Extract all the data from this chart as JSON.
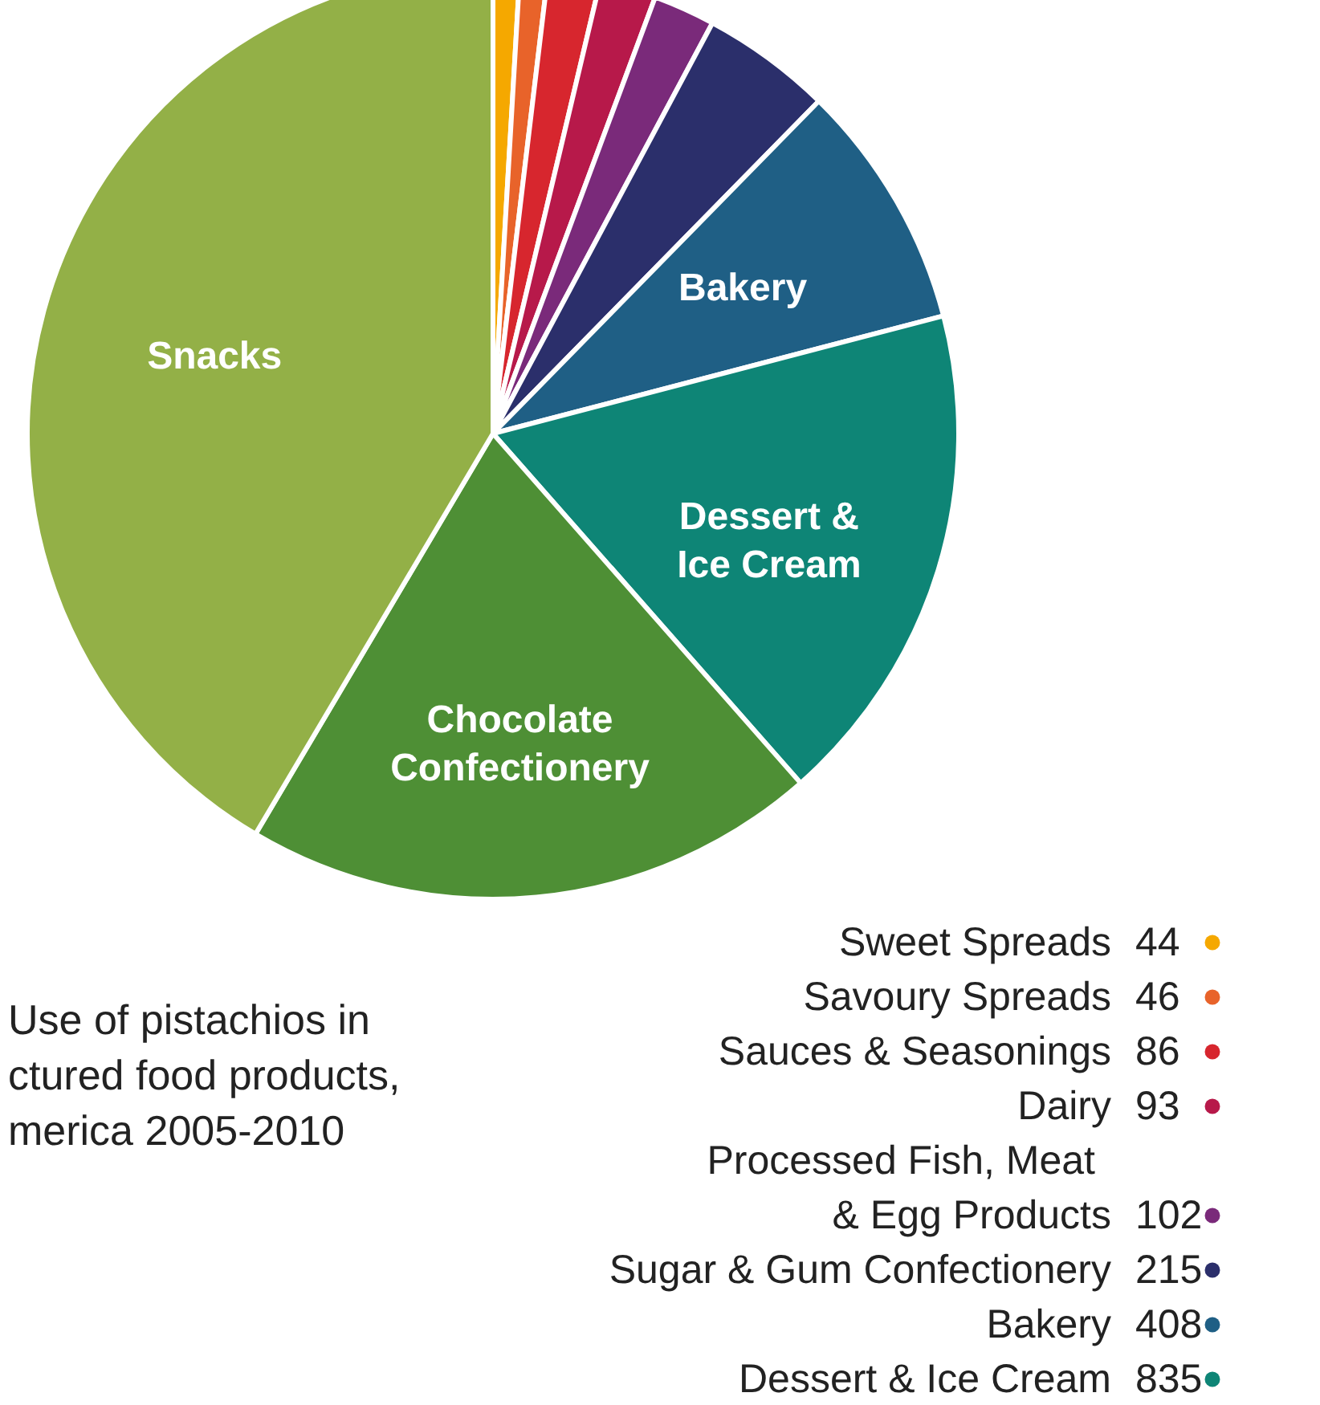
{
  "chart_data": {
    "type": "pie",
    "title": "Use of pistachios in ctured food products, merica 2005-2010",
    "categories": [
      "Sweet Spreads",
      "Savoury Spreads",
      "Sauces & Seasonings",
      "Dairy",
      "Processed Fish, Meat & Egg Products",
      "Sugar & Gum Confectionery",
      "Bakery",
      "Dessert & Ice Cream",
      "Chocolate Confectionery",
      "Snacks"
    ],
    "values": [
      44,
      46,
      86,
      93,
      102,
      215,
      408,
      835,
      950,
      1970
    ],
    "value_labels": [
      "44",
      "46",
      "86",
      "93",
      "102",
      "215",
      "408",
      "835",
      null,
      null
    ],
    "colors": [
      "#f5a800",
      "#e8632a",
      "#d7262e",
      "#b7194a",
      "#7a2a7a",
      "#2b2f6b",
      "#1f5f85",
      "#0e8576",
      "#4e8f35",
      "#93b047"
    ],
    "legend": "bottom right"
  }
}
